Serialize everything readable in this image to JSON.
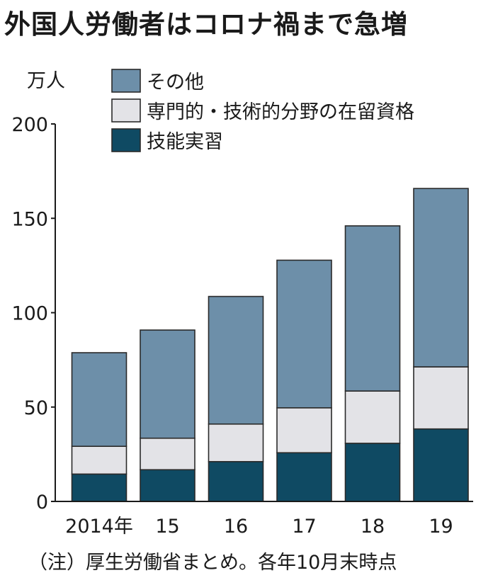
{
  "chart_data": {
    "type": "bar",
    "stacked": true,
    "title": "外国人労働者はコロナ禍まで急増",
    "unit_label": "万人",
    "categories": [
      "2014年",
      "15",
      "16",
      "17",
      "18",
      "19"
    ],
    "series": [
      {
        "name": "技能実習",
        "color": "#0f4a63",
        "values": [
          14.5,
          16.8,
          21.1,
          25.8,
          30.8,
          38.4
        ]
      },
      {
        "name": "専門的・技術的分野の在留資格",
        "color": "#e3e3e7",
        "values": [
          14.7,
          16.7,
          19.9,
          23.8,
          27.7,
          32.9
        ]
      },
      {
        "name": "その他",
        "color": "#6d8fa9",
        "values": [
          49.6,
          57.3,
          67.6,
          78.2,
          87.5,
          94.5
        ]
      }
    ],
    "legend_order": [
      "その他",
      "専門的・技術的分野の在留資格",
      "技能実習"
    ],
    "legend_position": "top",
    "ylim": [
      0,
      200
    ],
    "yticks": [
      0,
      50,
      100,
      150,
      200
    ],
    "grid": false,
    "note": "（注）厚生労働省まとめ。各年10月末時点"
  }
}
